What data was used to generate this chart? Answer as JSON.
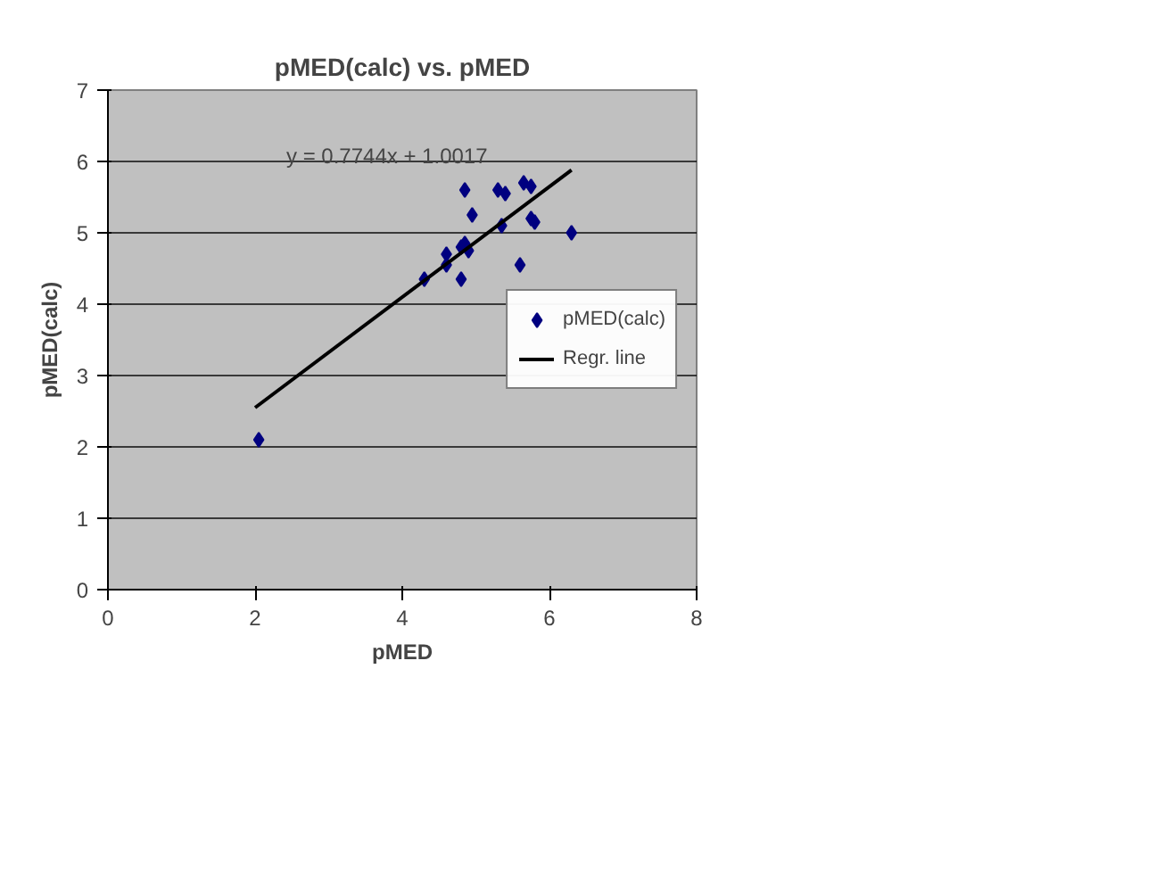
{
  "chart_data": {
    "type": "scatter",
    "title": "pMED(calc) vs. pMED",
    "xlabel": "pMED",
    "ylabel": "pMED(calc)",
    "xlim": [
      0,
      8
    ],
    "ylim": [
      0,
      7
    ],
    "xticks": [
      0,
      2,
      4,
      6,
      8
    ],
    "yticks": [
      0,
      1,
      2,
      3,
      4,
      5,
      6,
      7
    ],
    "grid": "y",
    "legend": "right",
    "series": [
      {
        "name": "pMED(calc)",
        "color": "#000080",
        "marker": "diamond",
        "x": [
          2.05,
          4.3,
          4.6,
          4.6,
          4.8,
          4.8,
          4.85,
          4.9,
          4.85,
          4.95,
          5.3,
          5.4,
          5.35,
          5.6,
          5.65,
          5.75,
          5.75,
          5.8,
          6.3
        ],
        "values": [
          2.1,
          4.35,
          4.55,
          4.7,
          4.35,
          4.8,
          4.85,
          4.75,
          5.6,
          5.25,
          5.6,
          5.55,
          5.1,
          4.55,
          5.7,
          5.65,
          5.2,
          5.15,
          5.0
        ]
      },
      {
        "name": "Regr. line",
        "color": "#000000",
        "type": "line",
        "x": [
          2.0,
          6.3
        ],
        "values": [
          2.55,
          5.88
        ]
      }
    ],
    "annotations": [
      "y = 0.7744x + 1.0017"
    ]
  }
}
